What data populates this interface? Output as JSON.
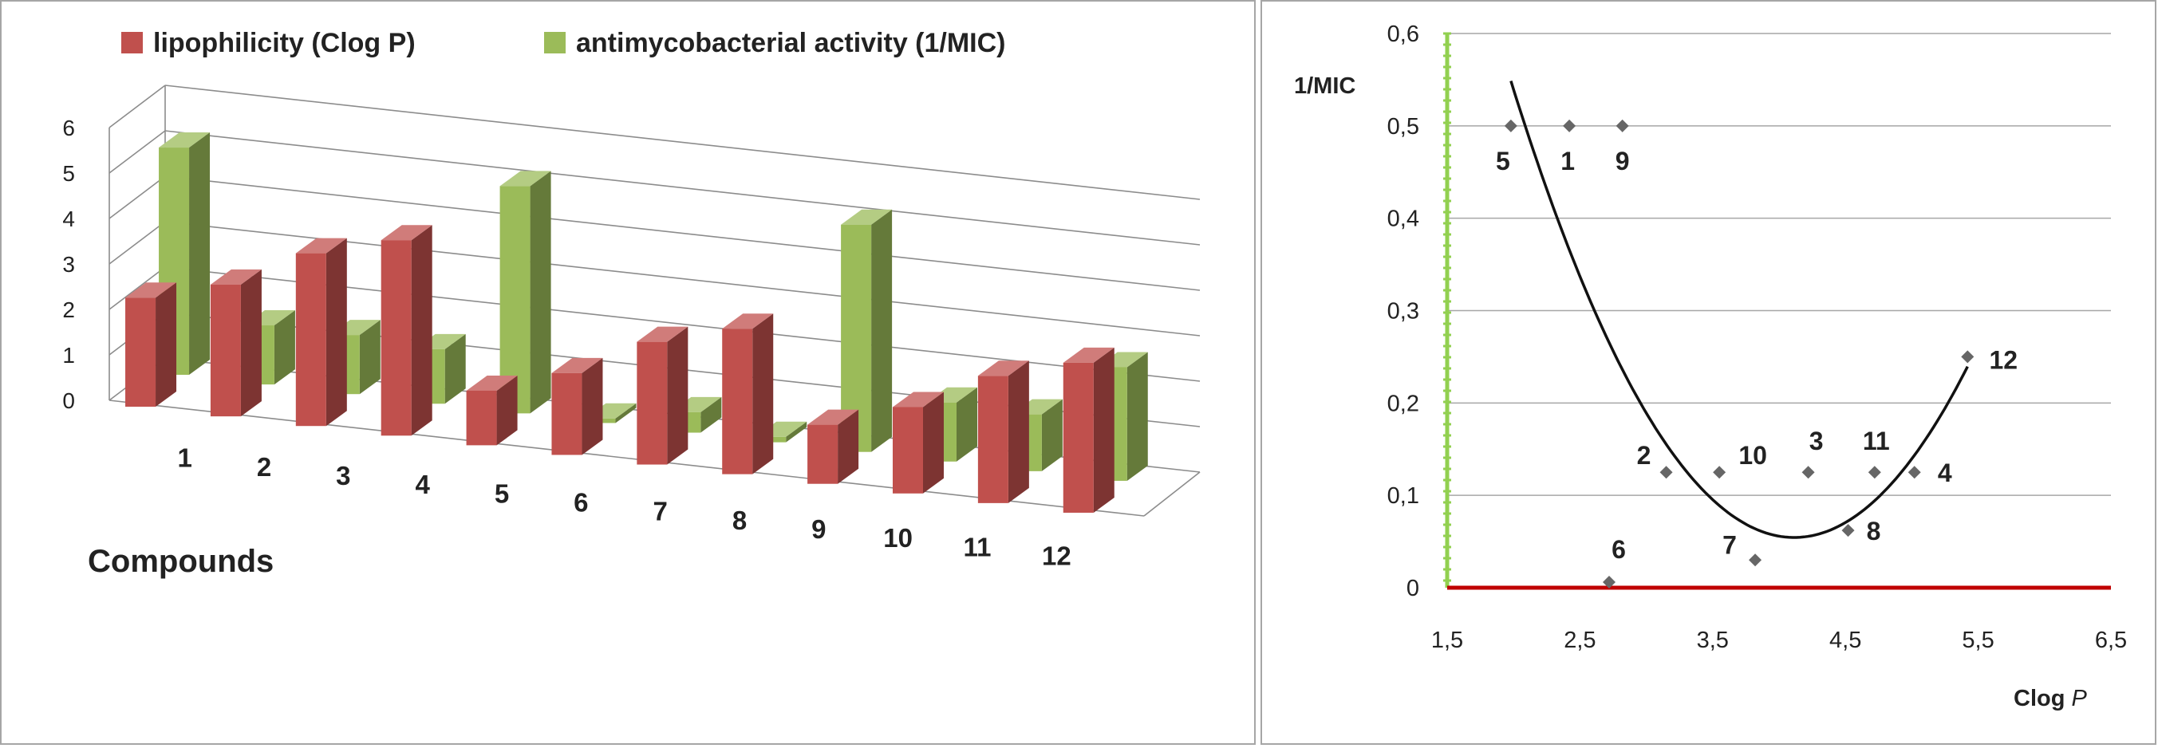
{
  "chart_data": [
    {
      "type": "bar",
      "title": "",
      "xlabel": "Compounds",
      "ylabel": "",
      "ylim": [
        0,
        6
      ],
      "yticks": [
        "0",
        "1",
        "2",
        "3",
        "4",
        "5",
        "6"
      ],
      "categories": [
        "1",
        "2",
        "3",
        "4",
        "5",
        "6",
        "7",
        "8",
        "9",
        "10",
        "11",
        "12"
      ],
      "legend_position": "top",
      "series": [
        {
          "name": "lipophilicity (Clog P)",
          "color": "#c0504d",
          "values": [
            2.4,
            2.9,
            3.8,
            4.3,
            1.2,
            1.8,
            2.7,
            3.2,
            1.3,
            1.9,
            2.8,
            3.3
          ]
        },
        {
          "name": "antimycobacterial activity (1/MIC)",
          "color": "#9bbb59",
          "values": [
            5.0,
            1.3,
            1.3,
            1.2,
            5.0,
            0.1,
            0.45,
            0.12,
            5.0,
            1.3,
            1.25,
            2.5
          ]
        }
      ]
    },
    {
      "type": "scatter",
      "title": "",
      "xlabel": "Clog",
      "xlabel_italic": "P",
      "ylabel": "1/MIC",
      "xlim": [
        1.5,
        6.5
      ],
      "ylim": [
        0,
        0.6
      ],
      "xticks": [
        "1,5",
        "2,5",
        "3,5",
        "4,5",
        "5,5",
        "6,5"
      ],
      "yticks": [
        "0",
        "0,1",
        "0,2",
        "0,3",
        "0,4",
        "0,5",
        "0,6"
      ],
      "grid": true,
      "points": [
        {
          "label": "5",
          "x": 1.98,
          "y": 0.5
        },
        {
          "label": "1",
          "x": 2.42,
          "y": 0.5
        },
        {
          "label": "9",
          "x": 2.82,
          "y": 0.5
        },
        {
          "label": "2",
          "x": 3.15,
          "y": 0.125
        },
        {
          "label": "10",
          "x": 3.55,
          "y": 0.125
        },
        {
          "label": "3",
          "x": 4.22,
          "y": 0.125
        },
        {
          "label": "11",
          "x": 4.72,
          "y": 0.125
        },
        {
          "label": "4",
          "x": 5.02,
          "y": 0.125
        },
        {
          "label": "12",
          "x": 5.42,
          "y": 0.25
        },
        {
          "label": "6",
          "x": 2.72,
          "y": 0.006
        },
        {
          "label": "7",
          "x": 3.82,
          "y": 0.03
        },
        {
          "label": "8",
          "x": 4.52,
          "y": 0.062
        }
      ],
      "trendline": {
        "type": "polynomial-2",
        "x_start": 1.98,
        "x_end": 5.42,
        "coefficients": [
          1.891,
          -0.8928,
          0.1085
        ]
      }
    }
  ]
}
